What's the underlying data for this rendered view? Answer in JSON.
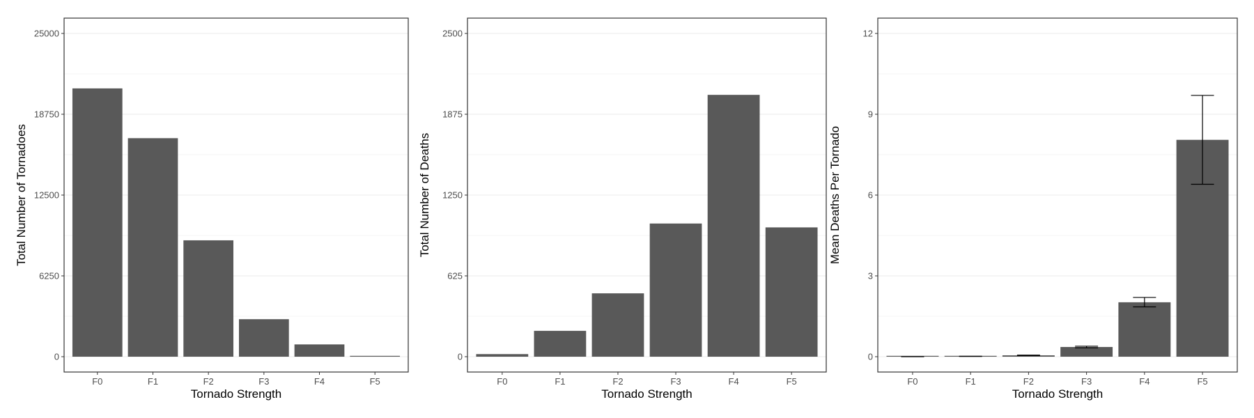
{
  "style": {
    "bar_color": "#595959",
    "grid_color": "#ebebeb",
    "axis_color": "#333333",
    "tick_text_color": "#4d4d4d"
  },
  "chart_data": [
    {
      "type": "bar",
      "categories": [
        "F0",
        "F1",
        "F2",
        "F3",
        "F4",
        "F5"
      ],
      "values": [
        20750,
        16900,
        9000,
        2900,
        950,
        60
      ],
      "xlabel": "Tornado Strength",
      "ylabel": "Total Number of Tornadoes",
      "ylim": [
        0,
        25000
      ],
      "yticks": [
        0,
        6250,
        12500,
        18750,
        25000
      ],
      "yticks_labels": [
        "0",
        "6250",
        "12500",
        "18750",
        "25000"
      ],
      "grid": true
    },
    {
      "type": "bar",
      "categories": [
        "F0",
        "F1",
        "F2",
        "F3",
        "F4",
        "F5"
      ],
      "values": [
        20,
        200,
        490,
        1030,
        2025,
        1000
      ],
      "xlabel": "Tornado Strength",
      "ylabel": "Total Number of Deaths",
      "ylim": [
        0,
        2500
      ],
      "yticks": [
        0,
        625,
        1250,
        1875,
        2500
      ],
      "yticks_labels": [
        "0",
        "625",
        "1250",
        "1875",
        "2500"
      ],
      "grid": true
    },
    {
      "type": "bar",
      "categories": [
        "F0",
        "F1",
        "F2",
        "F3",
        "F4",
        "F5"
      ],
      "values": [
        0.001,
        0.012,
        0.05,
        0.36,
        2.02,
        8.05
      ],
      "error_low": [
        0.0,
        0.008,
        0.04,
        0.33,
        1.85,
        6.4
      ],
      "error_high": [
        0.002,
        0.016,
        0.06,
        0.39,
        2.2,
        9.7
      ],
      "xlabel": "Tornado Strength",
      "ylabel": "Mean Deaths Per Tornado",
      "ylim": [
        0,
        12
      ],
      "yticks": [
        0,
        3,
        6,
        9,
        12
      ],
      "yticks_labels": [
        "0",
        "3",
        "6",
        "9",
        "12"
      ],
      "grid": true
    }
  ]
}
